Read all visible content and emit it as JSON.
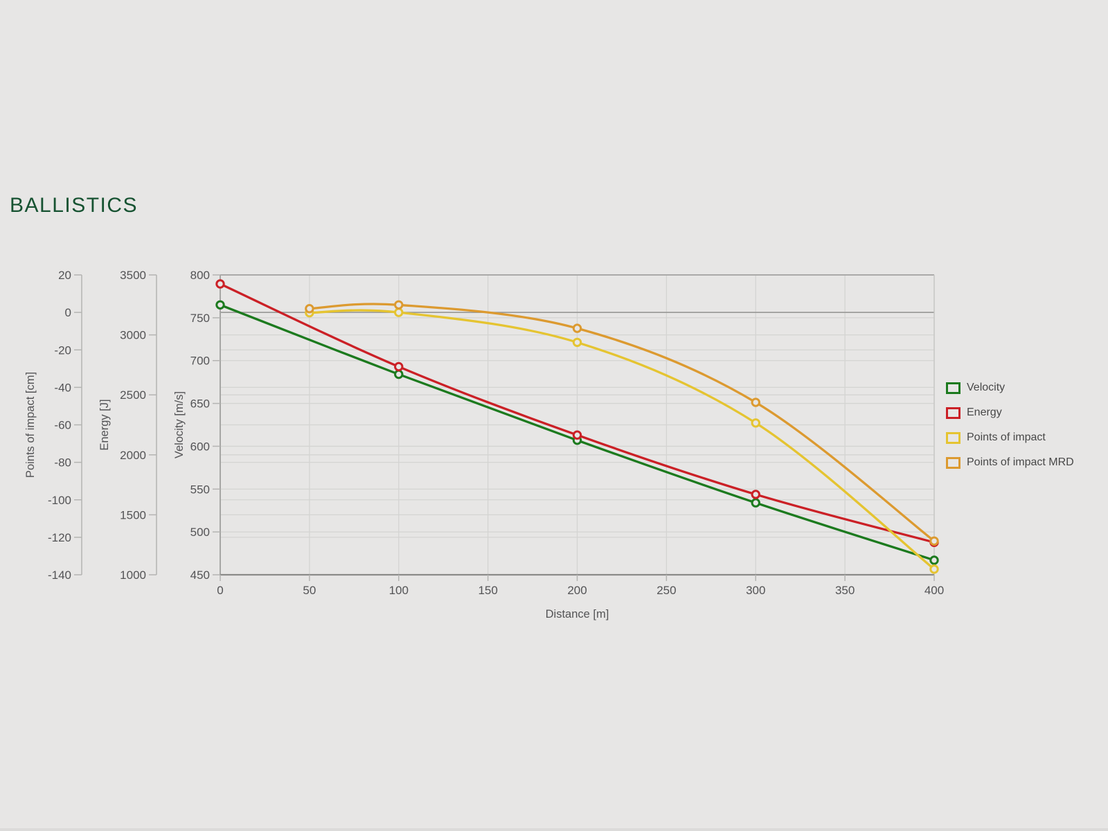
{
  "page": {
    "title": "BALLISTICS",
    "title_color": "#165231",
    "background": "#e7e6e5"
  },
  "chart_data": {
    "type": "line",
    "title": "BALLISTICS",
    "xlabel": "Distance [m]",
    "x_range": [
      0,
      400
    ],
    "x_ticks": [
      0,
      50,
      100,
      150,
      200,
      250,
      300,
      350,
      400
    ],
    "grid": true,
    "legend_position": "right",
    "axes": [
      {
        "id": "poi",
        "label": "Points of impact [cm]",
        "range": [
          -140,
          20
        ],
        "ticks": [
          20,
          0,
          -20,
          -40,
          -60,
          -80,
          -100,
          -120,
          -140
        ],
        "zero_line": 0
      },
      {
        "id": "energy",
        "label": "Energy [J]",
        "range": [
          1000,
          3500
        ],
        "ticks": [
          3500,
          3000,
          2500,
          2000,
          1500,
          1000
        ]
      },
      {
        "id": "velocity",
        "label": "Velocity [m/s]",
        "range": [
          450,
          800
        ],
        "ticks": [
          800,
          750,
          700,
          650,
          600,
          550,
          500,
          450
        ]
      }
    ],
    "series": [
      {
        "name": "Velocity",
        "axis": "velocity",
        "color": "#1c7a1e",
        "x": [
          0,
          100,
          200,
          300,
          400
        ],
        "values": [
          765,
          684,
          607,
          534,
          467
        ]
      },
      {
        "name": "Energy",
        "axis": "energy",
        "color": "#cb2026",
        "x": [
          0,
          100,
          200,
          300,
          400
        ],
        "values": [
          3425,
          2735,
          2165,
          1670,
          1270
        ]
      },
      {
        "name": "Points of impact",
        "axis": "poi",
        "color": "#e5c431",
        "x": [
          50,
          100,
          200,
          300,
          400
        ],
        "values": [
          -0.2,
          0,
          -16,
          -59,
          -137
        ]
      },
      {
        "name": "Points of impact MRD",
        "axis": "poi",
        "color": "#dc9a30",
        "x": [
          50,
          100,
          200,
          300,
          400
        ],
        "values": [
          2,
          4,
          -8.5,
          -48,
          -122
        ]
      }
    ]
  }
}
